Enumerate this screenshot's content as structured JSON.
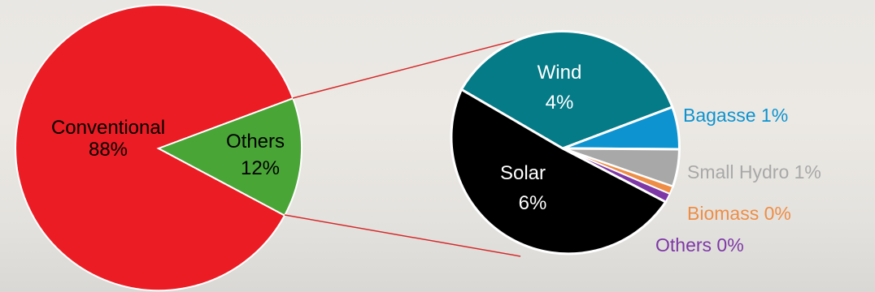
{
  "chart_data": [
    {
      "type": "pie",
      "slices": [
        {
          "label": "Conventional",
          "value": 88,
          "value_label": "88%",
          "color": "#ec1c24"
        },
        {
          "label": "Others",
          "value": 12,
          "value_label": "12%",
          "color": "#4aa537"
        }
      ]
    },
    {
      "type": "pie",
      "slices": [
        {
          "label": "Wind",
          "value": 4,
          "value_label": "4%",
          "color": "#047b87"
        },
        {
          "label": "Bagasse",
          "value": 1,
          "value_label": "1%",
          "color": "#0c93d0"
        },
        {
          "label": "Small Hydro",
          "value": 1,
          "value_label": "1%",
          "color": "#a8a8a8"
        },
        {
          "label": "Biomass",
          "value": 0,
          "value_label": "0%",
          "color": "#ee8d45"
        },
        {
          "label": "Others",
          "value": 0,
          "value_label": "0%",
          "color": "#7e37a7"
        },
        {
          "label": "Solar",
          "value": 6,
          "value_label": "6%",
          "color": "#000000"
        }
      ]
    }
  ],
  "labels": {
    "conventional": {
      "name": "Conventional",
      "pct": "88%"
    },
    "others_main": {
      "name": "Others",
      "pct": "12%"
    },
    "wind": {
      "name": "Wind",
      "pct": "4%"
    },
    "solar": {
      "name": "Solar",
      "pct": "6%"
    },
    "bagasse": "Bagasse 1%",
    "small_hydro": "Small Hydro 1%",
    "biomass": "Biomass 0%",
    "others_small": "Others 0%"
  }
}
